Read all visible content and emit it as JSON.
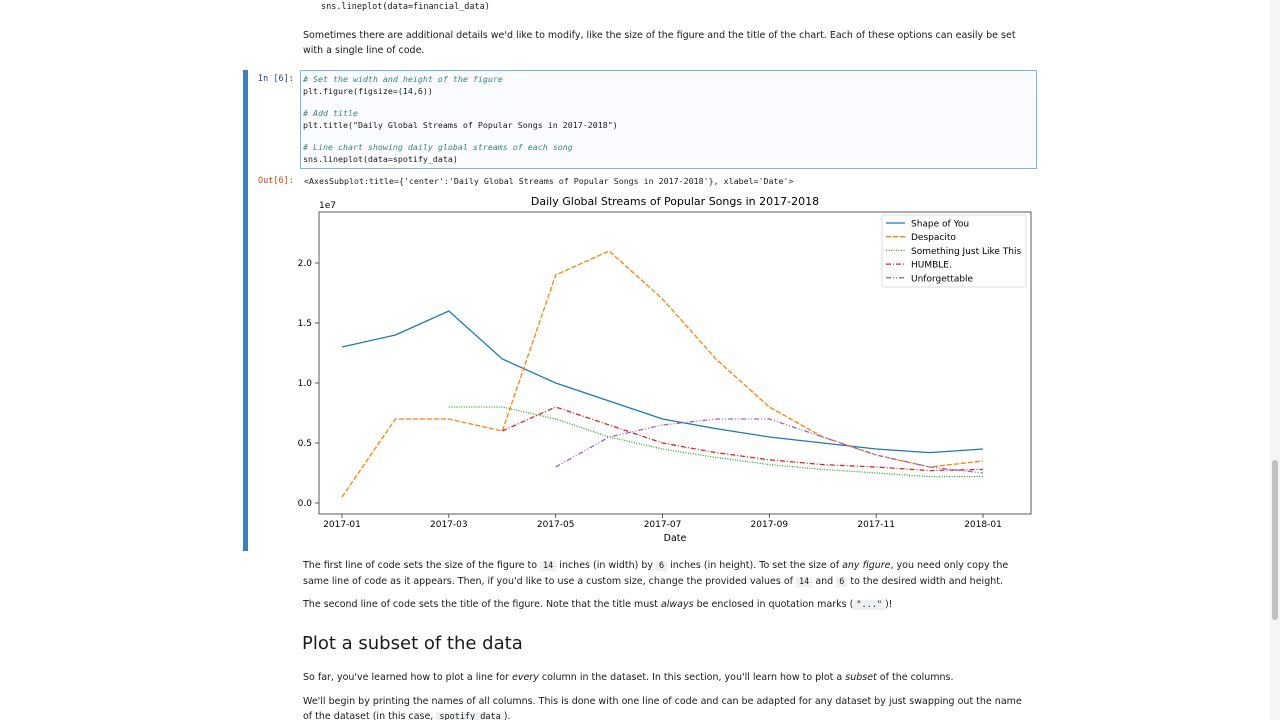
{
  "top_code": "sns.lineplot(data=financial_data)",
  "intro": "Sometimes there are additional details we'd like to modify, like the size of the figure and the title of the chart. Each of these options can easily be set with a single line of code.",
  "cell": {
    "in_prompt": "In [6]:",
    "code": [
      "# Set the width and height of the figure",
      "plt.figure(figsize=(14,6))",
      "# Add title",
      "plt.title(\"Daily Global Streams of Popular Songs in 2017-2018\")",
      "# Line chart showing daily global streams of each song",
      "sns.lineplot(data=spotify_data)"
    ],
    "out_prompt": "Out[6]:",
    "output": "<AxesSubplot:title={'center':'Daily Global Streams of Popular Songs in 2017-2018'}, xlabel='Date'>"
  },
  "chart_data": {
    "type": "line",
    "title": "Daily Global Streams of Popular Songs in 2017-2018",
    "x_label": "Date",
    "y_offset_label": "1e7",
    "x": [
      "2017-01",
      "2017-02",
      "2017-03",
      "2017-04",
      "2017-05",
      "2017-06",
      "2017-07",
      "2017-08",
      "2017-09",
      "2017-10",
      "2017-11",
      "2017-12",
      "2018-01"
    ],
    "xticks": [
      "2017-01",
      "2017-03",
      "2017-05",
      "2017-07",
      "2017-09",
      "2017-11",
      "2018-01"
    ],
    "ylim": [
      -0.092,
      2.425
    ],
    "yticks": [
      {
        "value": 0,
        "label": "0.0"
      },
      0.5,
      {
        "value": 1,
        "label": "1.0"
      },
      1.5,
      {
        "value": 2,
        "label": "2.0"
      }
    ],
    "legend": "upper right",
    "series": [
      {
        "name": "Shape of You",
        "color": "#1f77b4",
        "dash": "solid",
        "values": [
          1.3,
          1.4,
          1.6,
          1.2,
          1.0,
          0.85,
          0.7,
          0.62,
          0.55,
          0.5,
          0.45,
          0.42,
          0.45
        ]
      },
      {
        "name": "Despacito",
        "color": "#ff7f0e",
        "dash": "dashed",
        "values": [
          0.05,
          0.7,
          0.7,
          0.6,
          1.9,
          2.1,
          1.7,
          1.2,
          0.8,
          0.55,
          0.4,
          0.3,
          0.35
        ]
      },
      {
        "name": "Something Just Like This",
        "color": "#2ca02c",
        "dash": "dotted",
        "values": [
          null,
          null,
          0.8,
          0.8,
          0.7,
          0.55,
          0.45,
          0.38,
          0.32,
          0.28,
          0.25,
          0.22,
          0.22
        ]
      },
      {
        "name": "HUMBLE.",
        "color": "#d62728",
        "dash": "dashdot",
        "values": [
          null,
          null,
          null,
          0.6,
          0.8,
          0.65,
          0.5,
          0.42,
          0.36,
          0.32,
          0.3,
          0.27,
          0.28
        ]
      },
      {
        "name": "Unforgettable",
        "color": "#9467bd",
        "dash": "dashdotdot",
        "values": [
          null,
          null,
          null,
          null,
          0.3,
          0.55,
          0.65,
          0.7,
          0.7,
          0.55,
          0.4,
          0.3,
          0.25
        ]
      }
    ]
  },
  "explanation": {
    "p1": [
      "The first line of code sets the size of the figure to ",
      "14",
      " inches (in width) by ",
      "6",
      " inches (in height). To set the size of ",
      "any figure",
      ", you need only copy the same line of code as it appears. Then, if you'd like to use a custom size, change the provided values of ",
      "14",
      " and ",
      "6",
      " to the desired width and height."
    ],
    "p2": [
      "The second line of code sets the title of the figure. Note that the title must ",
      "always",
      " be enclosed in quotation marks (",
      "\"...\"",
      ")!"
    ]
  },
  "section": {
    "heading": "Plot a subset of the data",
    "p1": [
      "So far, you've learned how to plot a line for ",
      "every",
      " column in the dataset. In this section, you'll learn how to plot a ",
      "subset",
      " of the columns."
    ],
    "p2": [
      "We'll begin by printing the names of all columns. This is done with one line of code and can be adapted for any dataset by just swapping out the name of the dataset (in this case, ",
      "spotify_data",
      ")."
    ]
  }
}
